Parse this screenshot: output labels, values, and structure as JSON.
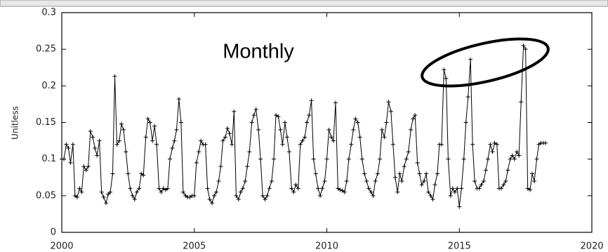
{
  "chart_data": {
    "type": "line",
    "ylabel": "Unitless",
    "annotation": "Monthly",
    "xlim": [
      2000,
      2020
    ],
    "xticks": [
      2000,
      2005,
      2010,
      2015,
      2020
    ],
    "ylim": [
      0,
      0.3
    ],
    "yticks": [
      0,
      0.05,
      0.1,
      0.15,
      0.2,
      0.25,
      0.3
    ],
    "series": [
      {
        "color": "#000000",
        "x": [
          2000,
          2000.08,
          2000.17,
          2000.25,
          2000.33,
          2000.42,
          2000.5,
          2000.58,
          2000.67,
          2000.75,
          2000.83,
          2000.92,
          2001,
          2001.08,
          2001.17,
          2001.25,
          2001.33,
          2001.42,
          2001.5,
          2001.58,
          2001.67,
          2001.75,
          2001.83,
          2001.92,
          2002,
          2002.08,
          2002.17,
          2002.25,
          2002.33,
          2002.42,
          2002.5,
          2002.58,
          2002.67,
          2002.75,
          2002.83,
          2002.92,
          2003,
          2003.08,
          2003.17,
          2003.25,
          2003.33,
          2003.42,
          2003.5,
          2003.58,
          2003.67,
          2003.75,
          2003.83,
          2003.92,
          2004,
          2004.08,
          2004.17,
          2004.25,
          2004.33,
          2004.42,
          2004.5,
          2004.58,
          2004.67,
          2004.75,
          2004.83,
          2004.92,
          2005,
          2005.08,
          2005.17,
          2005.25,
          2005.33,
          2005.42,
          2005.5,
          2005.58,
          2005.67,
          2005.75,
          2005.83,
          2005.92,
          2006,
          2006.08,
          2006.17,
          2006.25,
          2006.33,
          2006.42,
          2006.5,
          2006.58,
          2006.67,
          2006.75,
          2006.83,
          2006.92,
          2007,
          2007.08,
          2007.17,
          2007.25,
          2007.33,
          2007.42,
          2007.5,
          2007.58,
          2007.67,
          2007.75,
          2007.83,
          2007.92,
          2008,
          2008.08,
          2008.17,
          2008.25,
          2008.33,
          2008.42,
          2008.5,
          2008.58,
          2008.67,
          2008.75,
          2008.83,
          2008.92,
          2009,
          2009.08,
          2009.17,
          2009.25,
          2009.33,
          2009.42,
          2009.5,
          2009.58,
          2009.67,
          2009.75,
          2009.83,
          2009.92,
          2010,
          2010.08,
          2010.17,
          2010.25,
          2010.33,
          2010.42,
          2010.5,
          2010.58,
          2010.67,
          2010.75,
          2010.83,
          2010.92,
          2011,
          2011.08,
          2011.17,
          2011.25,
          2011.33,
          2011.42,
          2011.5,
          2011.58,
          2011.67,
          2011.75,
          2011.83,
          2011.92,
          2012,
          2012.08,
          2012.17,
          2012.25,
          2012.33,
          2012.42,
          2012.5,
          2012.58,
          2012.67,
          2012.75,
          2012.83,
          2012.92,
          2013,
          2013.08,
          2013.17,
          2013.25,
          2013.33,
          2013.42,
          2013.5,
          2013.58,
          2013.67,
          2013.75,
          2013.83,
          2013.92,
          2014,
          2014.08,
          2014.17,
          2014.25,
          2014.33,
          2014.42,
          2014.5,
          2014.58,
          2014.67,
          2014.75,
          2014.83,
          2014.92,
          2015,
          2015.08,
          2015.17,
          2015.25,
          2015.33,
          2015.42,
          2015.5,
          2015.58,
          2015.67,
          2015.75,
          2015.83,
          2015.92,
          2016,
          2016.08,
          2016.17,
          2016.25,
          2016.33,
          2016.42,
          2016.5,
          2016.58,
          2016.67,
          2016.75,
          2016.83,
          2016.92,
          2017,
          2017.08,
          2017.17,
          2017.25,
          2017.33,
          2017.42,
          2017.5,
          2017.58,
          2017.67,
          2017.75,
          2017.83,
          2017.92,
          2018,
          2018.08,
          2018.17,
          2018.25
        ],
        "values": [
          0.1,
          0.1,
          0.12,
          0.115,
          0.095,
          0.12,
          0.05,
          0.048,
          0.06,
          0.055,
          0.09,
          0.085,
          0.09,
          0.138,
          0.13,
          0.115,
          0.105,
          0.125,
          0.055,
          0.048,
          0.04,
          0.052,
          0.055,
          0.08,
          0.213,
          0.12,
          0.125,
          0.148,
          0.14,
          0.11,
          0.08,
          0.06,
          0.05,
          0.045,
          0.055,
          0.06,
          0.08,
          0.078,
          0.13,
          0.155,
          0.15,
          0.125,
          0.145,
          0.12,
          0.06,
          0.055,
          0.06,
          0.058,
          0.06,
          0.1,
          0.115,
          0.125,
          0.14,
          0.182,
          0.15,
          0.055,
          0.05,
          0.048,
          0.048,
          0.05,
          0.05,
          0.095,
          0.11,
          0.125,
          0.12,
          0.12,
          0.06,
          0.045,
          0.04,
          0.05,
          0.055,
          0.07,
          0.09,
          0.125,
          0.13,
          0.142,
          0.135,
          0.12,
          0.165,
          0.05,
          0.045,
          0.055,
          0.06,
          0.07,
          0.09,
          0.11,
          0.15,
          0.16,
          0.168,
          0.14,
          0.1,
          0.05,
          0.045,
          0.05,
          0.06,
          0.07,
          0.1,
          0.16,
          0.158,
          0.14,
          0.12,
          0.15,
          0.13,
          0.11,
          0.06,
          0.055,
          0.065,
          0.06,
          0.12,
          0.125,
          0.13,
          0.15,
          0.16,
          0.18,
          0.1,
          0.08,
          0.06,
          0.05,
          0.06,
          0.07,
          0.1,
          0.14,
          0.13,
          0.125,
          0.177,
          0.06,
          0.058,
          0.057,
          0.055,
          0.07,
          0.1,
          0.12,
          0.14,
          0.155,
          0.15,
          0.13,
          0.1,
          0.08,
          0.07,
          0.06,
          0.055,
          0.05,
          0.07,
          0.08,
          0.1,
          0.14,
          0.13,
          0.15,
          0.178,
          0.165,
          0.12,
          0.075,
          0.055,
          0.08,
          0.07,
          0.09,
          0.1,
          0.11,
          0.14,
          0.155,
          0.16,
          0.095,
          0.08,
          0.065,
          0.07,
          0.08,
          0.055,
          0.05,
          0.045,
          0.065,
          0.08,
          0.12,
          0.12,
          0.222,
          0.21,
          0.1,
          0.05,
          0.06,
          0.055,
          0.06,
          0.035,
          0.06,
          0.1,
          0.15,
          0.185,
          0.236,
          0.12,
          0.07,
          0.06,
          0.06,
          0.065,
          0.07,
          0.085,
          0.1,
          0.12,
          0.11,
          0.122,
          0.12,
          0.06,
          0.06,
          0.065,
          0.07,
          0.085,
          0.1,
          0.105,
          0.1,
          0.11,
          0.105,
          0.178,
          0.255,
          0.25,
          0.06,
          0.058,
          0.08,
          0.07,
          0.1,
          0.12,
          0.122,
          0.122,
          0.122
        ]
      }
    ]
  }
}
